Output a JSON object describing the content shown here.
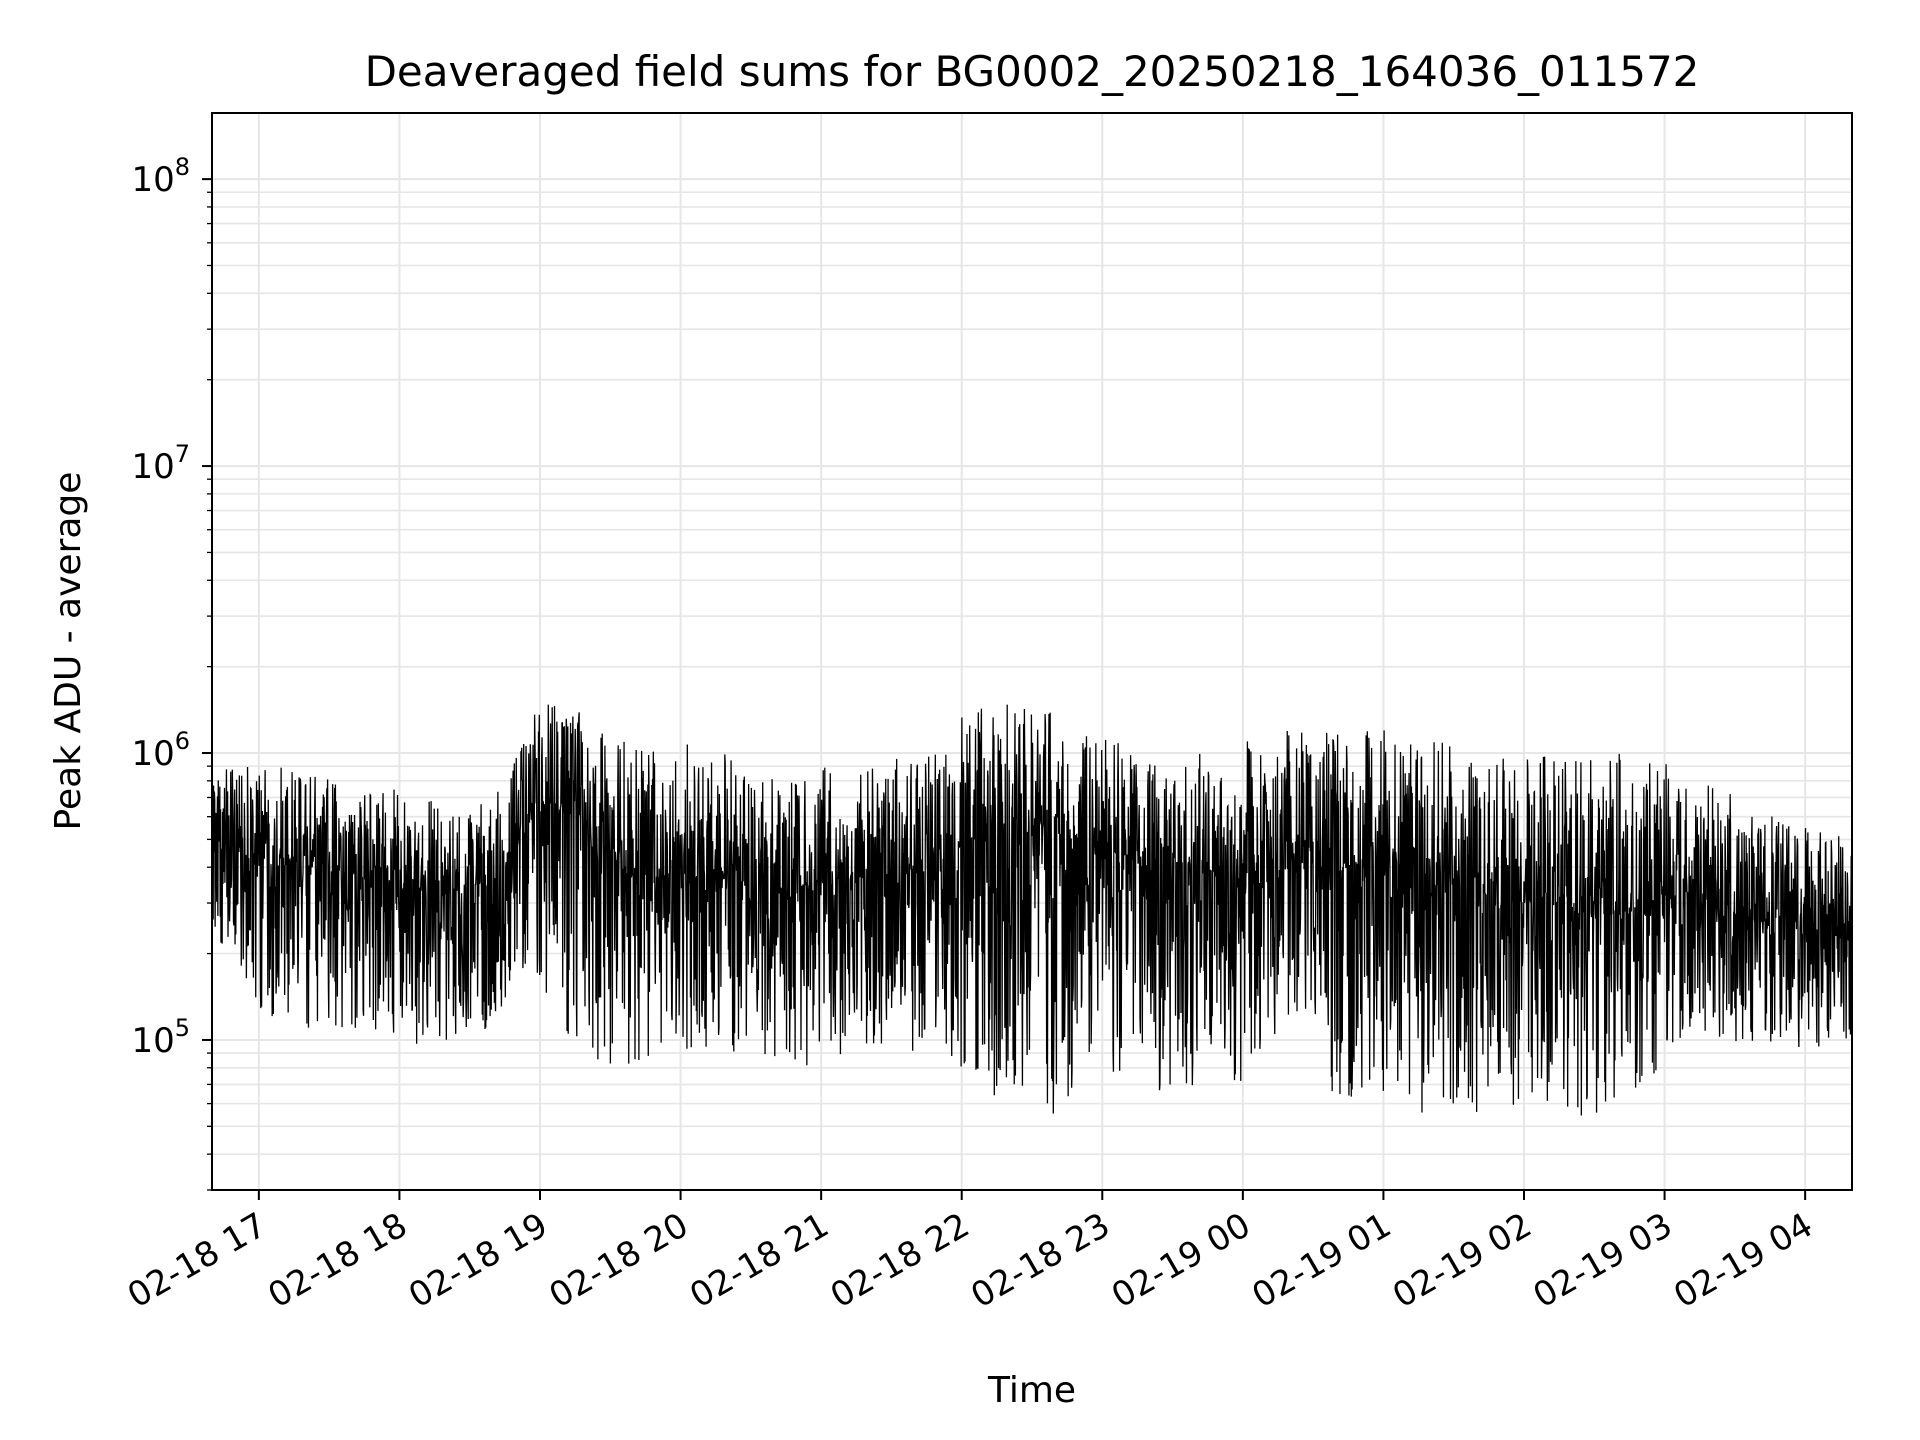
{
  "chart_data": {
    "type": "line",
    "title": "Deaveraged field sums for BG0002_20250218_164036_011572",
    "xlabel": "Time",
    "ylabel": "Peak ADU - average",
    "y_scale": "log",
    "ylim": [
      30000,
      170000000
    ],
    "xlim": [
      "2025-02-18 16:40",
      "2025-02-19 04:20"
    ],
    "grid": true,
    "legend": "none",
    "line_color": "#000000",
    "grid_color": "#e6e6e6",
    "x_ticks": [
      {
        "value": "2025-02-18 17:00",
        "label": "02-18 17"
      },
      {
        "value": "2025-02-18 18:00",
        "label": "02-18 18"
      },
      {
        "value": "2025-02-18 19:00",
        "label": "02-18 19"
      },
      {
        "value": "2025-02-18 20:00",
        "label": "02-18 20"
      },
      {
        "value": "2025-02-18 21:00",
        "label": "02-18 21"
      },
      {
        "value": "2025-02-18 22:00",
        "label": "02-18 22"
      },
      {
        "value": "2025-02-18 23:00",
        "label": "02-18 23"
      },
      {
        "value": "2025-02-19 00:00",
        "label": "02-19 00"
      },
      {
        "value": "2025-02-19 01:00",
        "label": "02-19 01"
      },
      {
        "value": "2025-02-19 02:00",
        "label": "02-19 02"
      },
      {
        "value": "2025-02-19 03:00",
        "label": "02-19 03"
      },
      {
        "value": "2025-02-19 04:00",
        "label": "02-19 04"
      }
    ],
    "y_ticks": [
      {
        "value": 100000,
        "base": "10",
        "exp": "5"
      },
      {
        "value": 1000000,
        "base": "10",
        "exp": "6"
      },
      {
        "value": 10000000,
        "base": "10",
        "exp": "7"
      },
      {
        "value": 100000000,
        "base": "10",
        "exp": "8"
      }
    ],
    "series": [
      {
        "x": [
          "2025-02-18 16:40",
          "2025-02-18 17:00",
          "2025-02-18 17:20",
          "2025-02-18 17:40",
          "2025-02-18 18:00",
          "2025-02-18 18:20",
          "2025-02-18 18:40",
          "2025-02-18 19:00",
          "2025-02-18 19:20",
          "2025-02-18 19:40",
          "2025-02-18 20:00",
          "2025-02-18 20:20",
          "2025-02-18 20:40",
          "2025-02-18 21:00",
          "2025-02-18 21:20",
          "2025-02-18 21:40",
          "2025-02-18 22:00",
          "2025-02-18 22:20",
          "2025-02-18 22:40",
          "2025-02-18 23:00",
          "2025-02-18 23:20",
          "2025-02-18 23:40",
          "2025-02-19 00:00",
          "2025-02-19 00:20",
          "2025-02-19 00:40",
          "2025-02-19 01:00",
          "2025-02-19 01:20",
          "2025-02-19 01:40",
          "2025-02-19 02:00",
          "2025-02-19 02:20",
          "2025-02-19 02:40",
          "2025-02-19 03:00",
          "2025-02-19 03:20",
          "2025-02-19 03:40",
          "2025-02-19 04:00",
          "2025-02-19 04:20"
        ],
        "y_median": [
          500000,
          450000,
          400000,
          380000,
          330000,
          320000,
          360000,
          650000,
          600000,
          350000,
          380000,
          370000,
          330000,
          360000,
          370000,
          380000,
          480000,
          550000,
          550000,
          450000,
          400000,
          380000,
          380000,
          400000,
          400000,
          400000,
          360000,
          330000,
          300000,
          280000,
          270000,
          320000,
          300000,
          260000,
          240000,
          250000
        ],
        "y_high": [
          900000,
          1000000,
          850000,
          800000,
          750000,
          650000,
          700000,
          1500000,
          1400000,
          1100000,
          1100000,
          1000000,
          850000,
          950000,
          900000,
          1000000,
          1400000,
          1600000,
          1500000,
          1200000,
          1000000,
          1000000,
          1100000,
          1200000,
          1200000,
          1250000,
          1100000,
          1050000,
          1000000,
          950000,
          1000000,
          950000,
          800000,
          650000,
          550000,
          500000
        ],
        "y_low": [
          250000,
          120000,
          110000,
          100000,
          90000,
          100000,
          110000,
          150000,
          80000,
          80000,
          90000,
          90000,
          85000,
          80000,
          95000,
          90000,
          80000,
          55000,
          55000,
          75000,
          65000,
          70000,
          70000,
          75000,
          65000,
          60000,
          55000,
          55000,
          55000,
          50000,
          60000,
          80000,
          100000,
          95000,
          90000,
          100000
        ],
        "y_extreme_high": 1800000,
        "y_extreme_low": 45000
      }
    ]
  }
}
